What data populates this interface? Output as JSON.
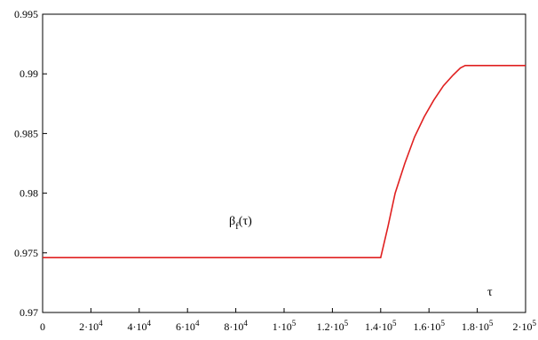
{
  "chart_data": {
    "type": "line",
    "title": "",
    "xlabel": "τ",
    "ylabel": "",
    "curve_label": {
      "main": "β",
      "sub": "f",
      "arg": "(τ)"
    },
    "xlim": [
      0,
      200000
    ],
    "ylim": [
      0.97,
      0.995
    ],
    "grid": false,
    "line_color": "#e02020",
    "x_ticks": [
      {
        "value": 0,
        "label": "0"
      },
      {
        "value": 20000,
        "mant": "2·10",
        "exp": "4"
      },
      {
        "value": 40000,
        "mant": "4·10",
        "exp": "4"
      },
      {
        "value": 60000,
        "mant": "6·10",
        "exp": "4"
      },
      {
        "value": 80000,
        "mant": "8·10",
        "exp": "4"
      },
      {
        "value": 100000,
        "mant": "1·10",
        "exp": "5"
      },
      {
        "value": 120000,
        "mant": "1.2·10",
        "exp": "5"
      },
      {
        "value": 140000,
        "mant": "1.4·10",
        "exp": "5"
      },
      {
        "value": 160000,
        "mant": "1.6·10",
        "exp": "5"
      },
      {
        "value": 180000,
        "mant": "1.8·10",
        "exp": "5"
      },
      {
        "value": 200000,
        "mant": "2·10",
        "exp": "5"
      }
    ],
    "y_ticks": [
      {
        "value": 0.97,
        "label": "0.97"
      },
      {
        "value": 0.975,
        "label": "0.975"
      },
      {
        "value": 0.98,
        "label": "0.98"
      },
      {
        "value": 0.985,
        "label": "0.985"
      },
      {
        "value": 0.99,
        "label": "0.99"
      },
      {
        "value": 0.995,
        "label": "0.995"
      }
    ],
    "series": [
      {
        "x": [
          0,
          140000,
          143000,
          146000,
          150000,
          154000,
          158000,
          162000,
          166000,
          170000,
          173000,
          175000,
          200000
        ],
        "y": [
          0.9746,
          0.9746,
          0.9772,
          0.98,
          0.9825,
          0.9847,
          0.9864,
          0.9878,
          0.989,
          0.9899,
          0.9905,
          0.9907,
          0.9907
        ]
      }
    ]
  }
}
